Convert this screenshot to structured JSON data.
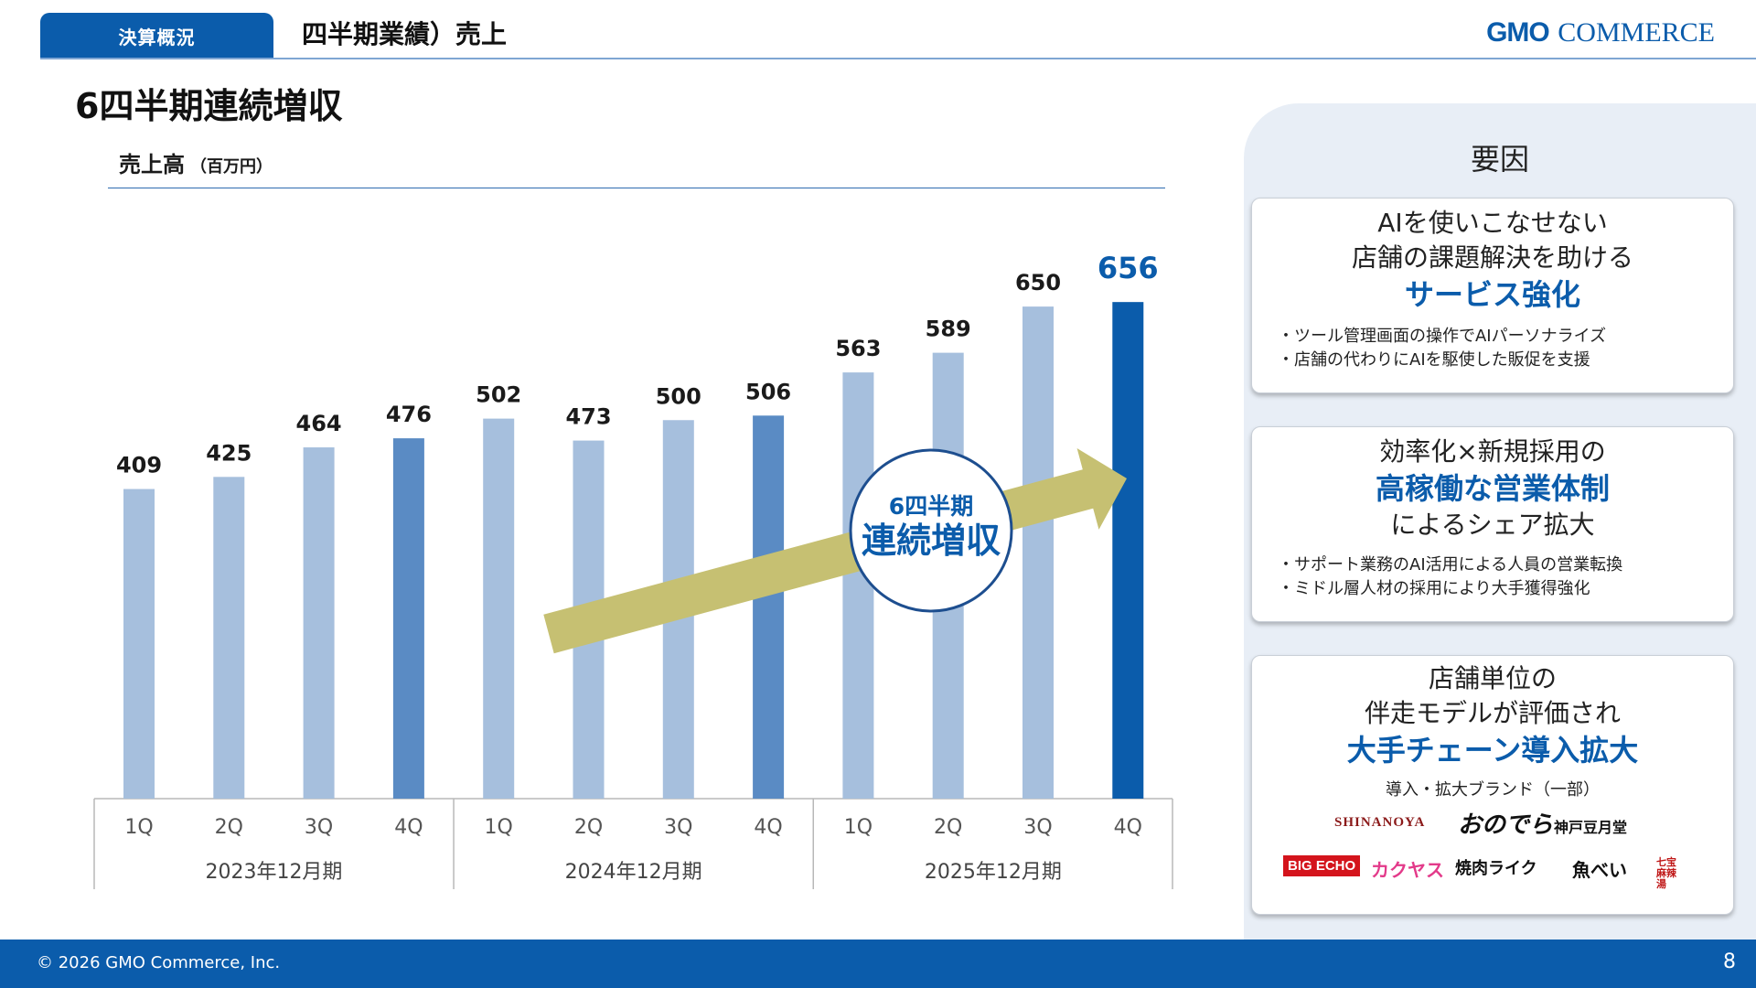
{
  "header": {
    "section_tab": "決算概況",
    "title": "四半期業績）売上",
    "logo_gmo": "GMO",
    "logo_commerce": "COMMERCE"
  },
  "main_title": "6四半期連続増収",
  "chart_data": {
    "type": "bar",
    "title": "売上高",
    "unit": "（百万円）",
    "categories": [
      "1Q",
      "2Q",
      "3Q",
      "4Q",
      "1Q",
      "2Q",
      "3Q",
      "4Q",
      "1Q",
      "2Q",
      "3Q",
      "4Q"
    ],
    "groups": [
      {
        "label": "2023年12月期",
        "count": 4
      },
      {
        "label": "2024年12月期",
        "count": 4
      },
      {
        "label": "2025年12月期",
        "count": 4
      }
    ],
    "values": [
      409,
      425,
      464,
      476,
      502,
      473,
      500,
      506,
      563,
      589,
      650,
      656
    ],
    "ylim": [
      0,
      700
    ],
    "colors": {
      "light": "#a6bfdd",
      "q4": "#5a8bc4",
      "latest": "#0b5cab",
      "latest_label": "#0b5cab",
      "arrow": "#c6c072"
    },
    "annotation": {
      "line1": "6四半期",
      "line2": "連続増収"
    }
  },
  "panel": {
    "title": "要因",
    "cards": [
      {
        "lines": [
          "AIを使いこなせない",
          "店舗の課題解決を助ける"
        ],
        "highlight": "サービス強化",
        "bullets": [
          "・ツール管理画面の操作でAIパーソナライズ",
          "・店舗の代わりにAIを駆使した販促を支援"
        ]
      },
      {
        "line_top": "効率化×新規採用の",
        "highlight": "高稼働な営業体制",
        "line_bottom": "によるシェア拡大",
        "bullets": [
          "・サポート業務のAI活用による人員の営業転換",
          "・ミドル層人材の採用により大手獲得強化"
        ]
      },
      {
        "lines": [
          "店舗単位の",
          "伴走モデルが評価され"
        ],
        "highlight": "大手チェーン導入拡大",
        "brands_caption": "導入・拡大ブランド（一部）",
        "brands": [
          "SHINANOYA",
          "おのでら",
          "神戸豆月堂",
          "BIG ECHO",
          "カクヤス",
          "焼肉ライク",
          "魚べい",
          "七宝麻辣湯"
        ]
      }
    ]
  },
  "footer": {
    "copyright": "© 2026 GMO Commerce, Inc.",
    "page": "8"
  }
}
